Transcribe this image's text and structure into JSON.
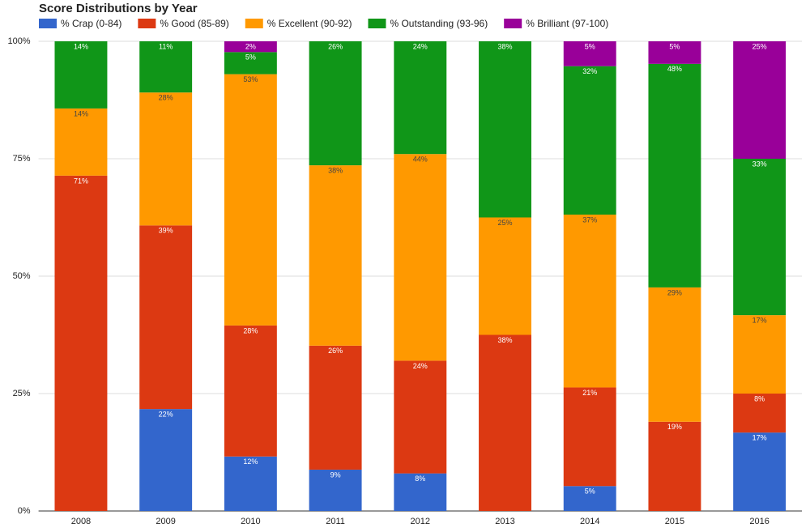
{
  "chart_data": {
    "type": "stacked-bar",
    "title": "Score Distributions by Year",
    "categories": [
      "2008",
      "2009",
      "2010",
      "2011",
      "2012",
      "2013",
      "2014",
      "2015",
      "2016"
    ],
    "series": [
      {
        "name": "% Crap (0-84)",
        "color": "#3366cc",
        "values": [
          0,
          21.7,
          11.6,
          8.8,
          8,
          0,
          5.3,
          0,
          16.7
        ],
        "value_labels": [
          null,
          "22%",
          "12%",
          "9%",
          "8%",
          null,
          "5%",
          null,
          "17%"
        ]
      },
      {
        "name": "% Good (85-89)",
        "color": "#dc3912",
        "values": [
          71.4,
          39.1,
          27.9,
          26.4,
          24,
          37.5,
          21,
          19,
          8.3
        ],
        "value_labels": [
          "71%",
          "39%",
          "28%",
          "26%",
          "24%",
          "38%",
          "21%",
          "19%",
          "8%"
        ]
      },
      {
        "name": "% Excellent (90-92)",
        "color": "#ff9900",
        "values": [
          14.3,
          28.3,
          53.5,
          38.4,
          44,
          25,
          36.8,
          28.6,
          16.7
        ],
        "value_labels": [
          "14%",
          "28%",
          "53%",
          "38%",
          "44%",
          "25%",
          "37%",
          "29%",
          "17%"
        ]
      },
      {
        "name": "% Outstanding (93-96)",
        "color": "#109618",
        "values": [
          14.3,
          10.9,
          4.7,
          26.4,
          24,
          37.5,
          31.6,
          47.6,
          33.3
        ],
        "value_labels": [
          "14%",
          "11%",
          "5%",
          "26%",
          "24%",
          "38%",
          "32%",
          "48%",
          "33%"
        ]
      },
      {
        "name": "% Brilliant (97-100)",
        "color": "#990099",
        "values": [
          0,
          0,
          2.3,
          0,
          0,
          0,
          5.3,
          4.8,
          25
        ],
        "value_labels": [
          null,
          null,
          "2%",
          null,
          null,
          null,
          "5%",
          "5%",
          "25%"
        ]
      }
    ],
    "ylim": [
      0,
      100
    ],
    "yticks": [
      {
        "value": 0,
        "label": "0%"
      },
      {
        "value": 25,
        "label": "25%"
      },
      {
        "value": 50,
        "label": "50%"
      },
      {
        "value": 75,
        "label": "75%"
      },
      {
        "value": 100,
        "label": "100%"
      }
    ],
    "grid": true,
    "legend": "top"
  }
}
